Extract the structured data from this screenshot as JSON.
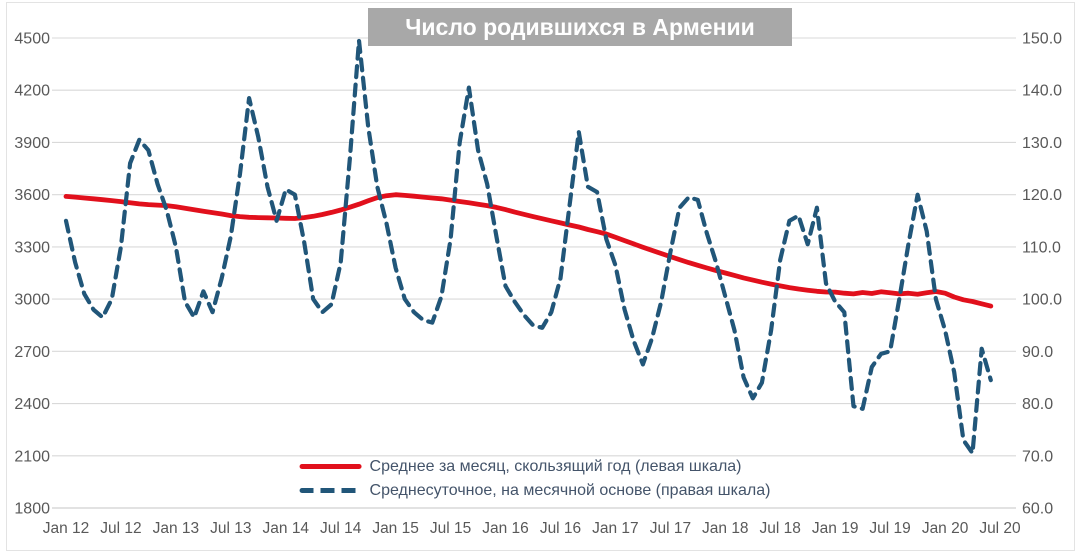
{
  "chart_data": {
    "type": "line",
    "title": "Число родившихся в Армении",
    "x_frequency": "monthly",
    "x_start": "Jan 2012",
    "x_end": "Jun 2020",
    "x_tick_labels": [
      "Jan 12",
      "Jul 12",
      "Jan 13",
      "Jul 13",
      "Jan 14",
      "Jul 14",
      "Jan 15",
      "Jul 15",
      "Jan 16",
      "Jul 16",
      "Jan 17",
      "Jul 17",
      "Jan 18",
      "Jul 18",
      "Jan 19",
      "Jul 19",
      "Jan 20",
      "Jul 20"
    ],
    "left_axis": {
      "min": 1800,
      "max": 4500,
      "step": 300,
      "ticks": [
        4500,
        4200,
        3900,
        3600,
        3300,
        3000,
        2700,
        2400,
        2100,
        1800
      ]
    },
    "right_axis": {
      "min": 60,
      "max": 150,
      "step": 10,
      "tick_labels": [
        "150.0",
        "140.0",
        "130.0",
        "120.0",
        "110.0",
        "100.0",
        "90.0",
        "80.0",
        "70.0",
        "60.0"
      ]
    },
    "grid": "horizontal",
    "legend_position": "bottom-center-inside",
    "series": [
      {
        "name": "Среднее за месяц, скользящий год (левая шкала)",
        "axis": "left",
        "style": "solid",
        "color": "#e1101c",
        "values": [
          3590,
          3586,
          3581,
          3576,
          3571,
          3566,
          3560,
          3553,
          3547,
          3543,
          3540,
          3537,
          3531,
          3522,
          3513,
          3505,
          3497,
          3489,
          3480,
          3474,
          3470,
          3468,
          3467,
          3466,
          3464,
          3463,
          3468,
          3476,
          3486,
          3498,
          3512,
          3528,
          3545,
          3565,
          3583,
          3594,
          3600,
          3596,
          3591,
          3586,
          3581,
          3576,
          3569,
          3561,
          3553,
          3545,
          3537,
          3527,
          3514,
          3500,
          3487,
          3474,
          3462,
          3450,
          3438,
          3426,
          3414,
          3400,
          3387,
          3374,
          3355,
          3336,
          3317,
          3298,
          3280,
          3262,
          3244,
          3227,
          3210,
          3194,
          3179,
          3164,
          3150,
          3136,
          3122,
          3109,
          3097,
          3086,
          3076,
          3066,
          3058,
          3051,
          3045,
          3041,
          3040,
          3034,
          3030,
          3038,
          3032,
          3042,
          3036,
          3030,
          3034,
          3028,
          3036,
          3044,
          3034,
          3012,
          2996,
          2986,
          2973,
          2960
        ]
      },
      {
        "name": "Среднесуточное, на месячной основе (правая шкала)",
        "axis": "right",
        "style": "dashed",
        "color": "#215679",
        "values": [
          115,
          107,
          101,
          98,
          96.5,
          100,
          110,
          126,
          130.5,
          128.5,
          122,
          117,
          110,
          99.5,
          96.5,
          101.5,
          97.5,
          104,
          112,
          124,
          138.5,
          131,
          121.5,
          115,
          121,
          120,
          111,
          100,
          97.5,
          99,
          107,
          127,
          149.5,
          133,
          121.5,
          114.5,
          106,
          100,
          97.5,
          96,
          95.5,
          100.5,
          111.5,
          130,
          140.5,
          128.5,
          122,
          112,
          102.5,
          99.5,
          97,
          95,
          94.5,
          97.5,
          104,
          118,
          132,
          121.5,
          120.5,
          111.5,
          106.5,
          98,
          92,
          87.5,
          92.5,
          99.5,
          109,
          117.5,
          119.5,
          119,
          112.5,
          107,
          100.5,
          94,
          85,
          81,
          84,
          94,
          107.5,
          115,
          116,
          110.5,
          117.5,
          103,
          99.5,
          97.5,
          79.5,
          79,
          87,
          89.5,
          90,
          100,
          110.5,
          120,
          113,
          100,
          94,
          86,
          73,
          70.5,
          90.5,
          84.5
        ]
      }
    ],
    "colors": {
      "gridline": "#d9d9d9",
      "axis_label": "#595959",
      "legend_text": "#44546a",
      "title_background": "#a8a8a8",
      "title_text": "#ffffff"
    }
  }
}
